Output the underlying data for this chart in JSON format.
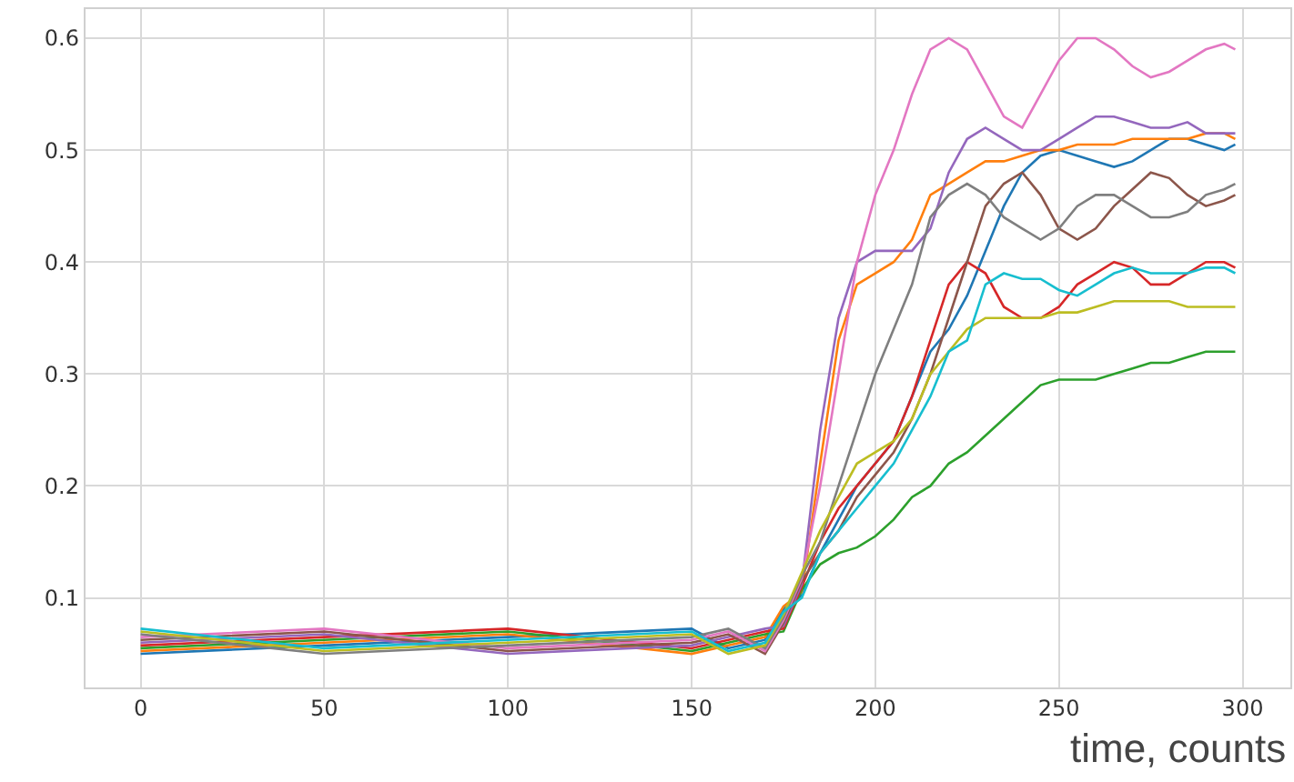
{
  "chart_data": {
    "type": "line",
    "xlabel": "time, counts",
    "x": [
      0,
      50,
      100,
      150,
      160,
      170,
      175,
      180,
      185,
      190,
      195,
      200,
      205,
      210,
      215,
      220,
      225,
      230,
      235,
      240,
      245,
      250,
      255,
      260,
      265,
      270,
      275,
      280,
      285,
      290,
      295,
      298
    ],
    "series": [
      {
        "color": "#1f77b4",
        "values": [
          0.05,
          0.0575,
          0.065,
          0.0725,
          0.055,
          0.0625,
          0.09,
          0.1025,
          0.14,
          0.17,
          0.2,
          0.22,
          0.24,
          0.28,
          0.32,
          0.34,
          0.37,
          0.41,
          0.45,
          0.48,
          0.495,
          0.5,
          0.495,
          0.49,
          0.485,
          0.49,
          0.5,
          0.51,
          0.51,
          0.505,
          0.5,
          0.505
        ]
      },
      {
        "color": "#ff7f0e",
        "values": [
          0.0525,
          0.06,
          0.0675,
          0.05,
          0.0575,
          0.065,
          0.0925,
          0.105,
          0.22,
          0.33,
          0.38,
          0.39,
          0.4,
          0.42,
          0.46,
          0.47,
          0.48,
          0.49,
          0.49,
          0.495,
          0.5,
          0.5,
          0.505,
          0.505,
          0.505,
          0.51,
          0.51,
          0.51,
          0.51,
          0.515,
          0.515,
          0.51
        ]
      },
      {
        "color": "#2ca02c",
        "values": [
          0.055,
          0.0625,
          0.07,
          0.0525,
          0.06,
          0.0675,
          0.07,
          0.1075,
          0.13,
          0.14,
          0.145,
          0.155,
          0.17,
          0.19,
          0.2,
          0.22,
          0.23,
          0.245,
          0.26,
          0.275,
          0.29,
          0.295,
          0.295,
          0.295,
          0.3,
          0.305,
          0.31,
          0.31,
          0.315,
          0.32,
          0.32,
          0.32
        ]
      },
      {
        "color": "#d62728",
        "values": [
          0.0575,
          0.065,
          0.0725,
          0.055,
          0.0625,
          0.07,
          0.0725,
          0.11,
          0.15,
          0.18,
          0.2,
          0.22,
          0.24,
          0.28,
          0.33,
          0.38,
          0.4,
          0.39,
          0.36,
          0.35,
          0.35,
          0.36,
          0.38,
          0.39,
          0.4,
          0.395,
          0.38,
          0.38,
          0.39,
          0.4,
          0.4,
          0.395
        ]
      },
      {
        "color": "#9467bd",
        "values": [
          0.06,
          0.0675,
          0.05,
          0.0575,
          0.065,
          0.0725,
          0.075,
          0.1125,
          0.25,
          0.35,
          0.4,
          0.41,
          0.41,
          0.41,
          0.43,
          0.48,
          0.51,
          0.52,
          0.51,
          0.5,
          0.5,
          0.51,
          0.52,
          0.53,
          0.53,
          0.525,
          0.52,
          0.52,
          0.525,
          0.515,
          0.515,
          0.515
        ]
      },
      {
        "color": "#8c564b",
        "values": [
          0.0625,
          0.07,
          0.0525,
          0.06,
          0.0675,
          0.05,
          0.0775,
          0.115,
          0.14,
          0.16,
          0.19,
          0.21,
          0.23,
          0.26,
          0.3,
          0.35,
          0.4,
          0.45,
          0.47,
          0.48,
          0.46,
          0.43,
          0.42,
          0.43,
          0.45,
          0.465,
          0.48,
          0.475,
          0.46,
          0.45,
          0.455,
          0.46
        ]
      },
      {
        "color": "#e377c2",
        "values": [
          0.065,
          0.0725,
          0.055,
          0.0625,
          0.07,
          0.0525,
          0.08,
          0.1175,
          0.2,
          0.3,
          0.4,
          0.46,
          0.5,
          0.55,
          0.59,
          0.6,
          0.59,
          0.56,
          0.53,
          0.52,
          0.55,
          0.58,
          0.6,
          0.6,
          0.59,
          0.575,
          0.565,
          0.57,
          0.58,
          0.59,
          0.595,
          0.59
        ]
      },
      {
        "color": "#7f7f7f",
        "values": [
          0.0675,
          0.05,
          0.0575,
          0.065,
          0.0725,
          0.055,
          0.0825,
          0.12,
          0.15,
          0.2,
          0.25,
          0.3,
          0.34,
          0.38,
          0.44,
          0.46,
          0.47,
          0.46,
          0.44,
          0.43,
          0.42,
          0.43,
          0.45,
          0.46,
          0.46,
          0.45,
          0.44,
          0.44,
          0.445,
          0.46,
          0.465,
          0.47
        ]
      },
      {
        "color": "#bcbd22",
        "values": [
          0.07,
          0.0525,
          0.06,
          0.0675,
          0.05,
          0.0575,
          0.085,
          0.1225,
          0.16,
          0.19,
          0.22,
          0.23,
          0.24,
          0.26,
          0.3,
          0.32,
          0.34,
          0.35,
          0.35,
          0.35,
          0.35,
          0.355,
          0.355,
          0.36,
          0.365,
          0.365,
          0.365,
          0.365,
          0.36,
          0.36,
          0.36,
          0.36
        ]
      },
      {
        "color": "#17becf",
        "values": [
          0.0725,
          0.055,
          0.0625,
          0.07,
          0.0525,
          0.06,
          0.0875,
          0.1,
          0.14,
          0.16,
          0.18,
          0.2,
          0.22,
          0.25,
          0.28,
          0.32,
          0.33,
          0.38,
          0.39,
          0.385,
          0.385,
          0.375,
          0.37,
          0.38,
          0.39,
          0.395,
          0.39,
          0.39,
          0.39,
          0.395,
          0.395,
          0.39
        ]
      }
    ],
    "xlim": [
      -15,
      313
    ],
    "ylim": [
      0.02,
      0.626
    ],
    "xticks": [
      0,
      50,
      100,
      150,
      200,
      250,
      300
    ],
    "yticks": [
      0.1,
      0.2,
      0.3,
      0.4,
      0.5,
      0.6
    ],
    "grid": true,
    "marker": "none",
    "line_style": "solid"
  }
}
